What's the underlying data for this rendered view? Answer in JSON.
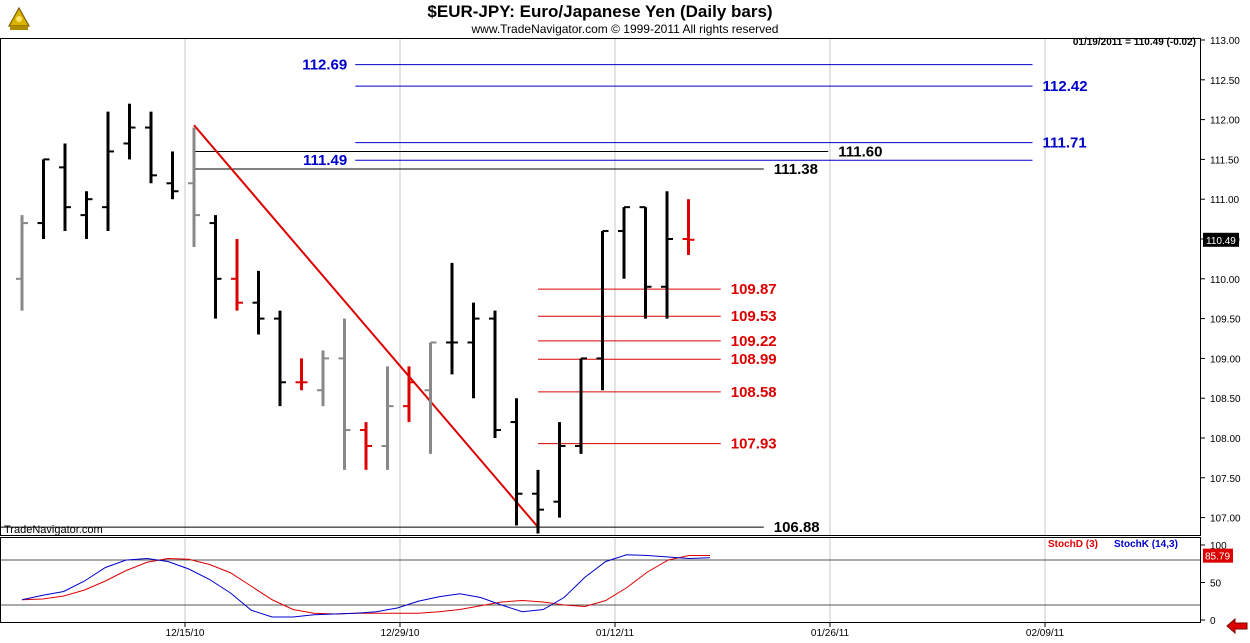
{
  "header": {
    "title": "$EUR-JPY:  Euro/Japanese Yen  (Daily bars)",
    "subtitle": "www.TradeNavigator.com © 1999-2011 All rights reserved",
    "readout": "01/19/2011 = 110.49 (-0.02)",
    "watermark": "TradeNavigator.com"
  },
  "colors": {
    "up": "#000000",
    "down": "#000000",
    "inside": "#888888",
    "highlight": "#dd0000",
    "blue": "#0000cc",
    "red": "#dd0000",
    "black": "#000000",
    "trendline": "#dd0000",
    "stochK": "#0000cc",
    "stochD": "#dd0000"
  },
  "chart_data": [
    {
      "type": "ohlc",
      "title": "$EUR-JPY:  Euro/Japanese Yen  (Daily bars)",
      "ylim": [
        106.7,
        113.0
      ],
      "y_ticks": [
        "113.00",
        "112.50",
        "112.00",
        "111.50",
        "111.00",
        "110.50",
        "110.00",
        "109.50",
        "109.00",
        "108.50",
        "108.00",
        "107.50",
        "107.00"
      ],
      "x_ticks": [
        "12/15/10",
        "12/29/10",
        "01/12/11",
        "01/26/11",
        "02/09/11"
      ],
      "x_tick_bars": [
        8,
        18,
        28,
        38,
        48
      ],
      "last_price": "110.49",
      "bars": [
        {
          "o": 110.0,
          "h": 110.8,
          "l": 109.6,
          "c": 110.7,
          "color": "gray"
        },
        {
          "o": 110.7,
          "h": 111.5,
          "l": 110.5,
          "c": 111.5,
          "color": "black"
        },
        {
          "o": 111.4,
          "h": 111.7,
          "l": 110.6,
          "c": 110.9,
          "color": "black"
        },
        {
          "o": 110.8,
          "h": 111.1,
          "l": 110.5,
          "c": 111.0,
          "color": "black"
        },
        {
          "o": 110.9,
          "h": 112.1,
          "l": 110.6,
          "c": 111.6,
          "color": "black"
        },
        {
          "o": 111.7,
          "h": 112.2,
          "l": 111.5,
          "c": 111.9,
          "color": "black"
        },
        {
          "o": 111.9,
          "h": 112.1,
          "l": 111.2,
          "c": 111.3,
          "color": "black"
        },
        {
          "o": 111.2,
          "h": 111.6,
          "l": 111.0,
          "c": 111.1,
          "color": "black"
        },
        {
          "o": 111.2,
          "h": 111.9,
          "l": 110.4,
          "c": 110.8,
          "color": "gray"
        },
        {
          "o": 110.7,
          "h": 110.8,
          "l": 109.5,
          "c": 110.0,
          "color": "black"
        },
        {
          "o": 110.0,
          "h": 110.5,
          "l": 109.6,
          "c": 109.7,
          "color": "red"
        },
        {
          "o": 109.7,
          "h": 110.1,
          "l": 109.3,
          "c": 109.5,
          "color": "black"
        },
        {
          "o": 109.5,
          "h": 109.6,
          "l": 108.4,
          "c": 108.7,
          "color": "black"
        },
        {
          "o": 108.7,
          "h": 109.0,
          "l": 108.6,
          "c": 108.7,
          "color": "red"
        },
        {
          "o": 108.6,
          "h": 109.1,
          "l": 108.4,
          "c": 109.0,
          "color": "gray"
        },
        {
          "o": 109.0,
          "h": 109.5,
          "l": 107.6,
          "c": 108.1,
          "color": "gray"
        },
        {
          "o": 108.1,
          "h": 108.2,
          "l": 107.6,
          "c": 107.9,
          "color": "red"
        },
        {
          "o": 107.9,
          "h": 108.9,
          "l": 107.6,
          "c": 108.4,
          "color": "gray"
        },
        {
          "o": 108.4,
          "h": 108.9,
          "l": 108.2,
          "c": 108.7,
          "color": "red"
        },
        {
          "o": 108.6,
          "h": 109.2,
          "l": 107.8,
          "c": 109.2,
          "color": "gray"
        },
        {
          "o": 109.2,
          "h": 110.2,
          "l": 108.8,
          "c": 109.2,
          "color": "black"
        },
        {
          "o": 109.2,
          "h": 109.7,
          "l": 108.5,
          "c": 109.5,
          "color": "black"
        },
        {
          "o": 109.5,
          "h": 109.6,
          "l": 108.0,
          "c": 108.1,
          "color": "black"
        },
        {
          "o": 108.2,
          "h": 108.5,
          "l": 106.9,
          "c": 107.3,
          "color": "black"
        },
        {
          "o": 107.3,
          "h": 107.6,
          "l": 106.8,
          "c": 107.1,
          "color": "black"
        },
        {
          "o": 107.2,
          "h": 108.2,
          "l": 107.0,
          "c": 107.9,
          "color": "black"
        },
        {
          "o": 107.9,
          "h": 109.0,
          "l": 107.8,
          "c": 109.0,
          "color": "black"
        },
        {
          "o": 109.0,
          "h": 110.6,
          "l": 108.6,
          "c": 110.6,
          "color": "black"
        },
        {
          "o": 110.6,
          "h": 110.9,
          "l": 110.0,
          "c": 110.9,
          "color": "black"
        },
        {
          "o": 110.9,
          "h": 110.9,
          "l": 109.5,
          "c": 109.9,
          "color": "black"
        },
        {
          "o": 109.9,
          "h": 111.1,
          "l": 109.5,
          "c": 110.5,
          "color": "black"
        },
        {
          "o": 110.5,
          "h": 111.0,
          "l": 110.3,
          "c": 110.49,
          "color": "red"
        }
      ],
      "levels": [
        {
          "label": "112.69",
          "value": 112.69,
          "color": "blue",
          "x1": 15.5,
          "x2": 47.0,
          "label_pos": "left"
        },
        {
          "label": "112.42",
          "value": 112.42,
          "color": "blue",
          "x1": 15.5,
          "x2": 47.0,
          "label_pos": "right"
        },
        {
          "label": "111.71",
          "value": 111.71,
          "color": "blue",
          "x1": 15.5,
          "x2": 47.0,
          "label_pos": "right"
        },
        {
          "label": "111.60",
          "value": 111.6,
          "color": "black",
          "x1": 8.0,
          "x2": 37.5,
          "label_pos": "right"
        },
        {
          "label": "111.49",
          "value": 111.49,
          "color": "blue",
          "x1": 15.5,
          "x2": 47.0,
          "label_pos": "left"
        },
        {
          "label": "111.38",
          "value": 111.38,
          "color": "black",
          "x1": 8.0,
          "x2": 34.5,
          "label_pos": "right"
        },
        {
          "label": "109.87",
          "value": 109.87,
          "color": "red",
          "x1": 24.0,
          "x2": 32.5,
          "label_pos": "right"
        },
        {
          "label": "109.53",
          "value": 109.53,
          "color": "red",
          "x1": 24.0,
          "x2": 32.5,
          "label_pos": "right"
        },
        {
          "label": "109.22",
          "value": 109.22,
          "color": "red",
          "x1": 24.0,
          "x2": 32.5,
          "label_pos": "right"
        },
        {
          "label": "108.99",
          "value": 108.99,
          "color": "red",
          "x1": 24.0,
          "x2": 32.5,
          "label_pos": "right"
        },
        {
          "label": "108.58",
          "value": 108.58,
          "color": "red",
          "x1": 24.0,
          "x2": 32.5,
          "label_pos": "right"
        },
        {
          "label": "107.93",
          "value": 107.93,
          "color": "red",
          "x1": 24.0,
          "x2": 32.5,
          "label_pos": "right"
        },
        {
          "label": "106.88",
          "value": 106.88,
          "color": "black",
          "x1": -1.2,
          "x2": 34.5,
          "label_pos": "right"
        }
      ],
      "trendline": {
        "from": {
          "bar": 8,
          "value": 111.93
        },
        "to": {
          "bar": 24,
          "value": 106.88
        }
      }
    },
    {
      "type": "line",
      "ylim": [
        0,
        100
      ],
      "y_ticks": [
        "100",
        "50",
        "0"
      ],
      "reference_lines": [
        80,
        20
      ],
      "last_value": "85.79",
      "series": [
        {
          "name": "StochD (3)",
          "color": "red",
          "values": [
            27,
            28,
            32,
            40,
            52,
            66,
            77,
            82,
            81,
            74,
            63,
            45,
            27,
            14,
            9,
            8,
            9,
            9,
            9,
            9,
            11,
            14,
            19,
            24,
            26,
            24,
            20,
            18,
            26,
            43,
            64,
            80,
            86,
            86
          ]
        },
        {
          "name": "StochK (14,3)",
          "color": "blue",
          "values": [
            27,
            33,
            38,
            52,
            70,
            80,
            82,
            78,
            68,
            54,
            36,
            13,
            4,
            4,
            7,
            8,
            9,
            11,
            16,
            25,
            31,
            35,
            30,
            20,
            11,
            14,
            30,
            57,
            78,
            87,
            86,
            84,
            82,
            83
          ]
        }
      ],
      "k_points": 33
    }
  ]
}
